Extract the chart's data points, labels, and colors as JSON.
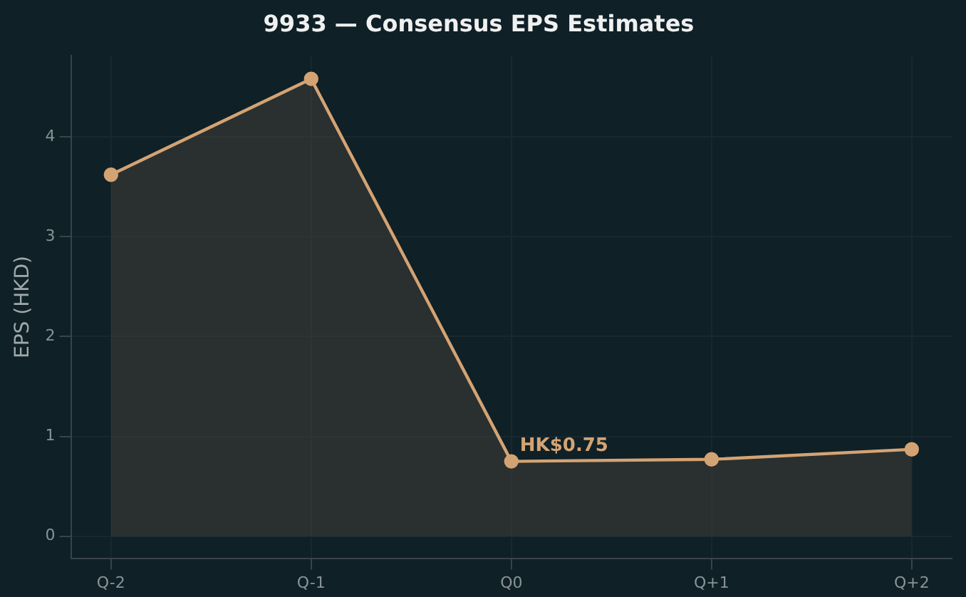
{
  "chart_data": {
    "type": "area",
    "title": "9933 — Consensus EPS Estimates",
    "ylabel": "EPS (HKD)",
    "categories": [
      "Q-2",
      "Q-1",
      "Q0",
      "Q+1",
      "Q+2"
    ],
    "series": [
      {
        "color": "#d4a373",
        "values": [
          3.62,
          4.58,
          0.75,
          0.77,
          0.87
        ]
      }
    ],
    "ylim": [
      -0.22,
      4.81
    ],
    "yticks": [
      0,
      1,
      2,
      3,
      4
    ],
    "grid": true,
    "legend": false,
    "marker": "circle",
    "line_style": "solid",
    "annotations": [
      {
        "text": "HK$0.75",
        "x": "Q0",
        "y": 0.75
      }
    ]
  }
}
